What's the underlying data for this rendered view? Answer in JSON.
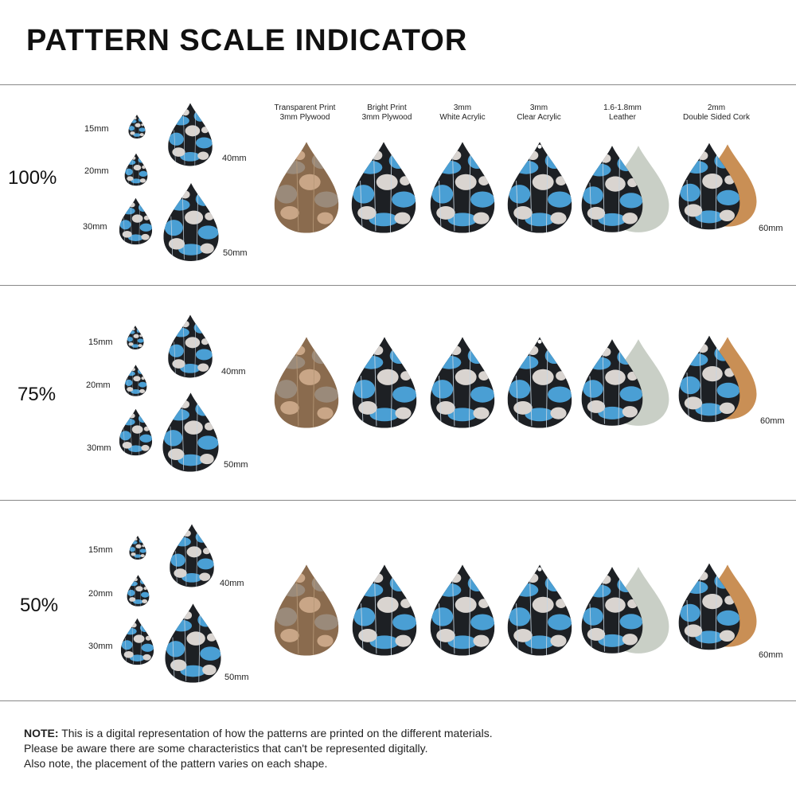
{
  "title": "PATTERN SCALE INDICATOR",
  "headers": [
    "Transparent Print\n3mm Plywood",
    "Bright Print\n3mm Plywood",
    "3mm\nWhite Acrylic",
    "3mm\nClear Acrylic",
    "1.6-1.8mm\nLeather",
    "2mm\nDouble Sided Cork"
  ],
  "size_labels": {
    "s15": "15mm",
    "s20": "20mm",
    "s30": "30mm",
    "s40": "40mm",
    "s50": "50mm",
    "s60": "60mm"
  },
  "sections": [
    {
      "scale": "100%"
    },
    {
      "scale": "75%"
    },
    {
      "scale": "50%"
    }
  ],
  "note": {
    "label": "NOTE:",
    "line1": " This is a digital representation of how the patterns are printed on the different materials.",
    "line2": "Please be aware there are some characteristics that can't be represented digitally.",
    "line3": "Also note, the placement of the pattern varies on each shape."
  },
  "colors": {
    "pattern_blue": "#4a9fd4",
    "pattern_dark": "#1d2024",
    "pattern_light": "#d9d4d0",
    "plywood": "#8a6b4e",
    "plywood_light": "#c9a687",
    "leather_back": "#c9cfc6",
    "cork": "#c98f55"
  }
}
